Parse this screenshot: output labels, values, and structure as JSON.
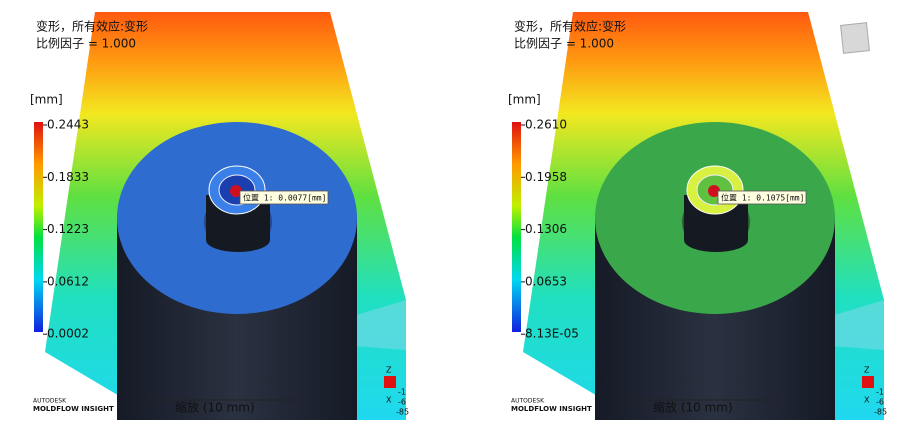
{
  "panels": [
    {
      "title": "变形，所有效应:变形",
      "scale_factor": "比例因子 = 1.000",
      "unit": "[mm]",
      "legend": [
        "0.2443",
        "0.1833",
        "0.1223",
        "0.0612",
        "0.0002"
      ],
      "probe": "位置 1:  0.0077[mm]",
      "brand": [
        "AUTODESK",
        "MOLDFLOW INSIGHT"
      ],
      "scale_bar": "缩放 (10 mm)",
      "triad": [
        "Z",
        "-1",
        "X",
        "-6",
        "-85"
      ]
    },
    {
      "title": "变形，所有效应:变形",
      "scale_factor": "比例因子 = 1.000",
      "unit": "[mm]",
      "legend": [
        "0.2610",
        "0.1958",
        "0.1306",
        "0.0653",
        "8.13E-05"
      ],
      "probe": "位置 1:  0.1075[mm]",
      "brand": [
        "AUTODESK",
        "MOLDFLOW INSIGHT"
      ],
      "scale_bar": "缩放 (10 mm)",
      "triad": [
        "Z",
        "-1",
        "X",
        "-6",
        "-85"
      ]
    }
  ]
}
